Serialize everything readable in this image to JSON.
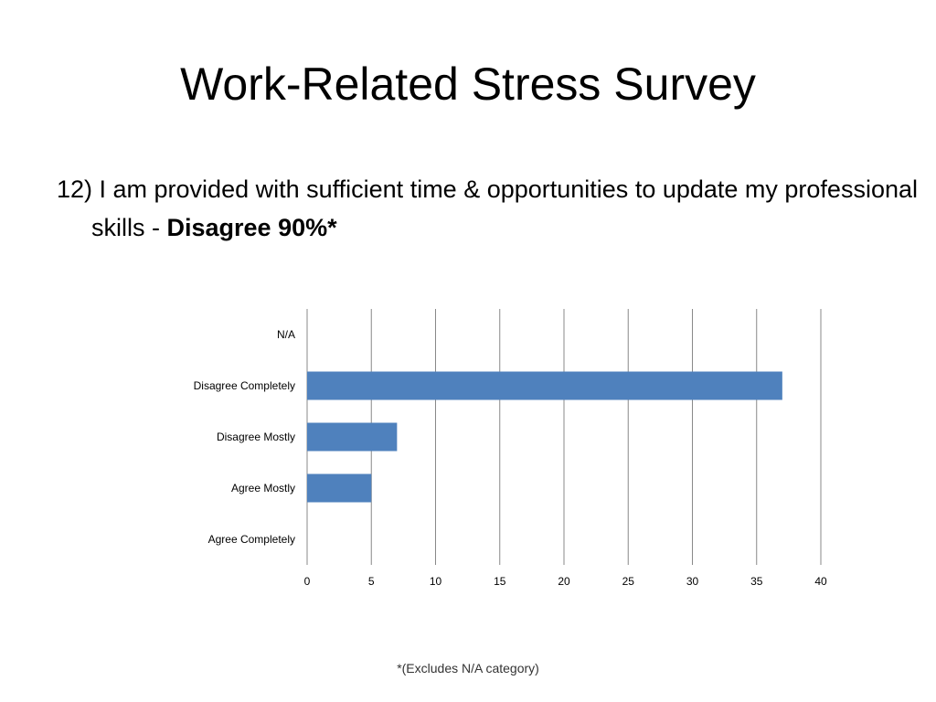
{
  "title": "Work-Related Stress Survey",
  "question": {
    "text": "12) I am provided with sufficient time & opportunities to update my professional skills - ",
    "highlight": "Disagree 90%*"
  },
  "footnote": "*(Excludes N/A category)",
  "colors": {
    "bar": "#4F81BD",
    "gridline": "#888888"
  },
  "chart_data": {
    "type": "bar",
    "orientation": "horizontal",
    "categories": [
      "N/A",
      "Disagree Completely",
      "Disagree Mostly",
      "Agree Mostly",
      "Agree Completely"
    ],
    "values": [
      0,
      37,
      7,
      5,
      0
    ],
    "xlim": [
      0,
      40
    ],
    "xticks": [
      0,
      5,
      10,
      15,
      20,
      25,
      30,
      35,
      40
    ],
    "grid": true,
    "legend": "none"
  }
}
